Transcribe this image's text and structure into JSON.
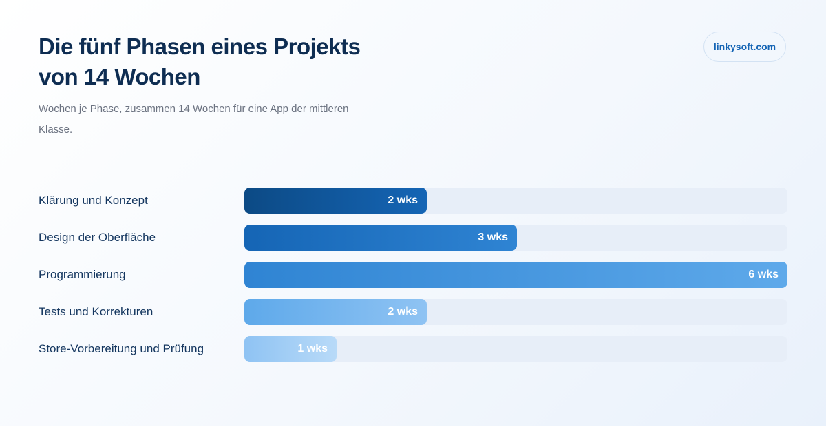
{
  "header": {
    "title": "Die fünf Phasen eines Projekts von 14 Wochen",
    "subtitle": "Wochen je Phase, zusammen 14 Wochen für eine App der mittleren Klasse.",
    "brand": "linkysoft.com"
  },
  "colors": {
    "title": "#0e2d52",
    "brand": "#1565b5",
    "track": "#e7eef8",
    "bar_gradients": [
      [
        "#0c4a85",
        "#1565b5"
      ],
      [
        "#1565b5",
        "#2f84d3"
      ],
      [
        "#2f84d3",
        "#5ea9ea"
      ],
      [
        "#5ea9ea",
        "#8fc3f3"
      ],
      [
        "#8fc3f3",
        "#b8daf8"
      ]
    ]
  },
  "chart_data": {
    "type": "bar",
    "orientation": "horizontal",
    "categories": [
      "Klärung und Konzept",
      "Design der Oberfläche",
      "Programmierung",
      "Tests und Korrekturen",
      "Store-Vorbereitung und Prüfung"
    ],
    "values": [
      2,
      3,
      6,
      2,
      1
    ],
    "value_labels": [
      "2 wks",
      "3 wks",
      "6 wks",
      "2 wks",
      "1 wks"
    ],
    "unit": "wks",
    "xlim": [
      0,
      6
    ],
    "grid": false
  }
}
